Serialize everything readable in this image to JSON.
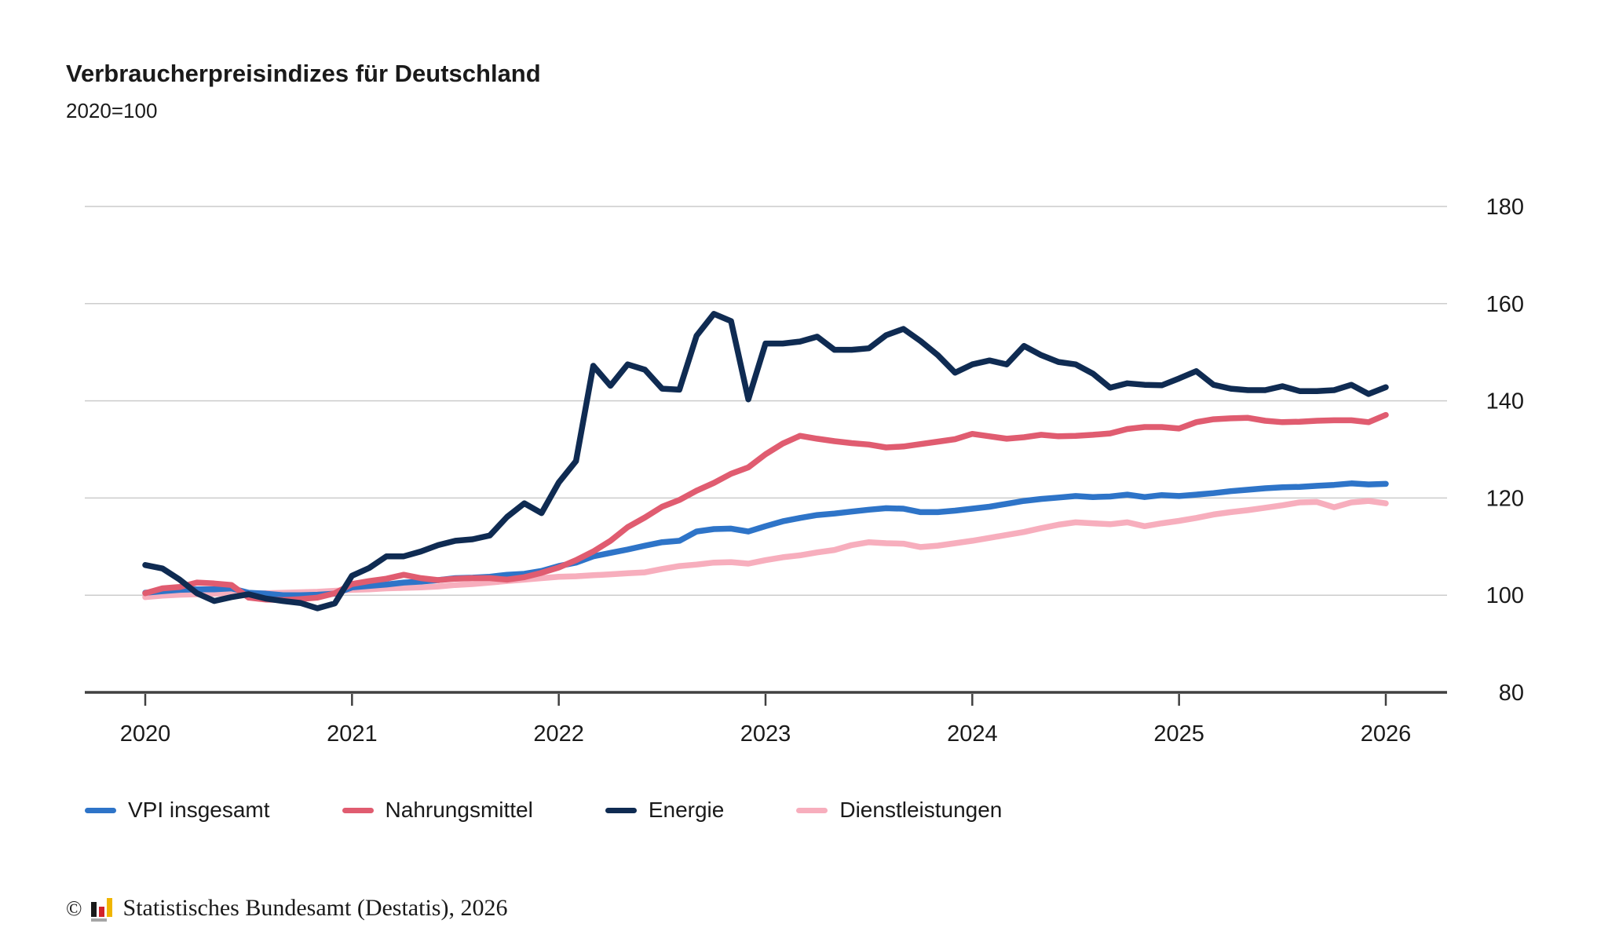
{
  "page": {
    "title": "Verbraucherpreisindizes für Deutschland",
    "subtitle": "2020=100"
  },
  "footer": {
    "copyright_symbol": "©",
    "source_text": "Statistisches Bundesamt (Destatis), 2026"
  },
  "logo_colors": {
    "black": "#1a1a1a",
    "red": "#d2232a",
    "gold": "#f0b500",
    "gray": "#a6a6a6"
  },
  "chart_data": {
    "type": "line",
    "title": "Verbraucherpreisindizes für Deutschland",
    "subtitle": "2020=100",
    "x_unit": "month",
    "x_start": "2020-01",
    "x_end": "2026-01",
    "x_tick_labels": [
      "2020",
      "2021",
      "2022",
      "2023",
      "2024",
      "2025",
      "2026"
    ],
    "y_ticks": [
      80,
      100,
      120,
      140,
      160,
      180
    ],
    "ylim": [
      80,
      190
    ],
    "grid": true,
    "grid_color": "#cccccc",
    "axis_color": "#404040",
    "legend_position": "bottom",
    "series": [
      {
        "name": "VPI insgesamt",
        "color": "#2E74C8",
        "values": [
          100.5,
          100.8,
          101.1,
          101.2,
          101.2,
          101.4,
          100.5,
          100.3,
          100.0,
          100.0,
          100.1,
          100.3,
          101.6,
          101.9,
          102.2,
          102.6,
          102.8,
          103.1,
          103.5,
          103.6,
          103.8,
          104.2,
          104.4,
          105.0,
          106.0,
          106.7,
          108.0,
          108.7,
          109.4,
          110.2,
          110.9,
          111.2,
          113.1,
          113.6,
          113.7,
          113.1,
          114.2,
          115.2,
          115.9,
          116.5,
          116.8,
          117.2,
          117.6,
          117.9,
          117.8,
          117.1,
          117.1,
          117.4,
          117.8,
          118.2,
          118.8,
          119.4,
          119.8,
          120.1,
          120.4,
          120.2,
          120.3,
          120.7,
          120.2,
          120.6,
          120.4,
          120.7,
          121.0,
          121.4,
          121.7,
          122.0,
          122.2,
          122.3,
          122.5,
          122.7,
          123.0,
          122.8,
          122.9
        ]
      },
      {
        "name": "Nahrungsmittel",
        "color": "#E05C70",
        "values": [
          100.4,
          101.4,
          101.7,
          102.6,
          102.4,
          102.1,
          99.5,
          99.1,
          99.0,
          99.2,
          99.5,
          100.4,
          102.3,
          102.9,
          103.4,
          104.2,
          103.5,
          103.1,
          103.4,
          103.5,
          103.5,
          103.2,
          103.7,
          104.6,
          105.7,
          107.2,
          109.0,
          111.2,
          114.0,
          116.0,
          118.2,
          119.6,
          121.5,
          123.1,
          125.0,
          126.3,
          129.0,
          131.2,
          132.8,
          132.2,
          131.7,
          131.3,
          131.0,
          130.4,
          130.6,
          131.1,
          131.6,
          132.1,
          133.2,
          132.7,
          132.2,
          132.5,
          133.0,
          132.7,
          132.8,
          133.0,
          133.3,
          134.2,
          134.6,
          134.6,
          134.3,
          135.6,
          136.2,
          136.4,
          136.5,
          135.9,
          135.6,
          135.7,
          135.9,
          136.0,
          136.0,
          135.6,
          137.1
        ]
      },
      {
        "name": "Energie",
        "color": "#0F2B52",
        "values": [
          106.2,
          105.5,
          103.2,
          100.4,
          98.8,
          99.6,
          100.2,
          99.3,
          98.8,
          98.4,
          97.3,
          98.3,
          104.0,
          105.6,
          108.0,
          108.0,
          109.0,
          110.3,
          111.2,
          111.5,
          112.3,
          116.1,
          118.9,
          116.9,
          123.2,
          127.6,
          147.2,
          143.1,
          147.5,
          146.4,
          142.5,
          142.3,
          153.4,
          157.9,
          156.4,
          140.3,
          151.8,
          151.8,
          152.2,
          153.2,
          150.5,
          150.5,
          150.8,
          153.5,
          154.8,
          152.3,
          149.4,
          145.8,
          147.5,
          148.3,
          147.5,
          151.3,
          149.4,
          148.0,
          147.5,
          145.6,
          142.7,
          143.6,
          143.3,
          143.2,
          144.6,
          146.1,
          143.3,
          142.5,
          142.2,
          142.2,
          143.0,
          142.0,
          142.0,
          142.2,
          143.3,
          141.4,
          142.8
        ]
      },
      {
        "name": "Dienstleistungen",
        "color": "#F7AEBD",
        "values": [
          99.6,
          99.9,
          100.1,
          100.2,
          100.3,
          100.4,
          100.3,
          100.4,
          100.5,
          100.6,
          100.7,
          100.9,
          101.1,
          101.2,
          101.4,
          101.5,
          101.6,
          101.8,
          102.1,
          102.3,
          102.6,
          102.9,
          103.2,
          103.5,
          103.8,
          103.9,
          104.1,
          104.3,
          104.5,
          104.7,
          105.4,
          106.0,
          106.3,
          106.7,
          106.8,
          106.5,
          107.2,
          107.8,
          108.2,
          108.8,
          109.3,
          110.3,
          110.9,
          110.7,
          110.6,
          109.9,
          110.2,
          110.7,
          111.2,
          111.8,
          112.4,
          113.0,
          113.8,
          114.5,
          115.0,
          114.8,
          114.6,
          115.0,
          114.2,
          114.8,
          115.3,
          115.9,
          116.6,
          117.1,
          117.5,
          118.0,
          118.5,
          119.1,
          119.2,
          118.1,
          119.1,
          119.4,
          118.9
        ]
      }
    ]
  }
}
